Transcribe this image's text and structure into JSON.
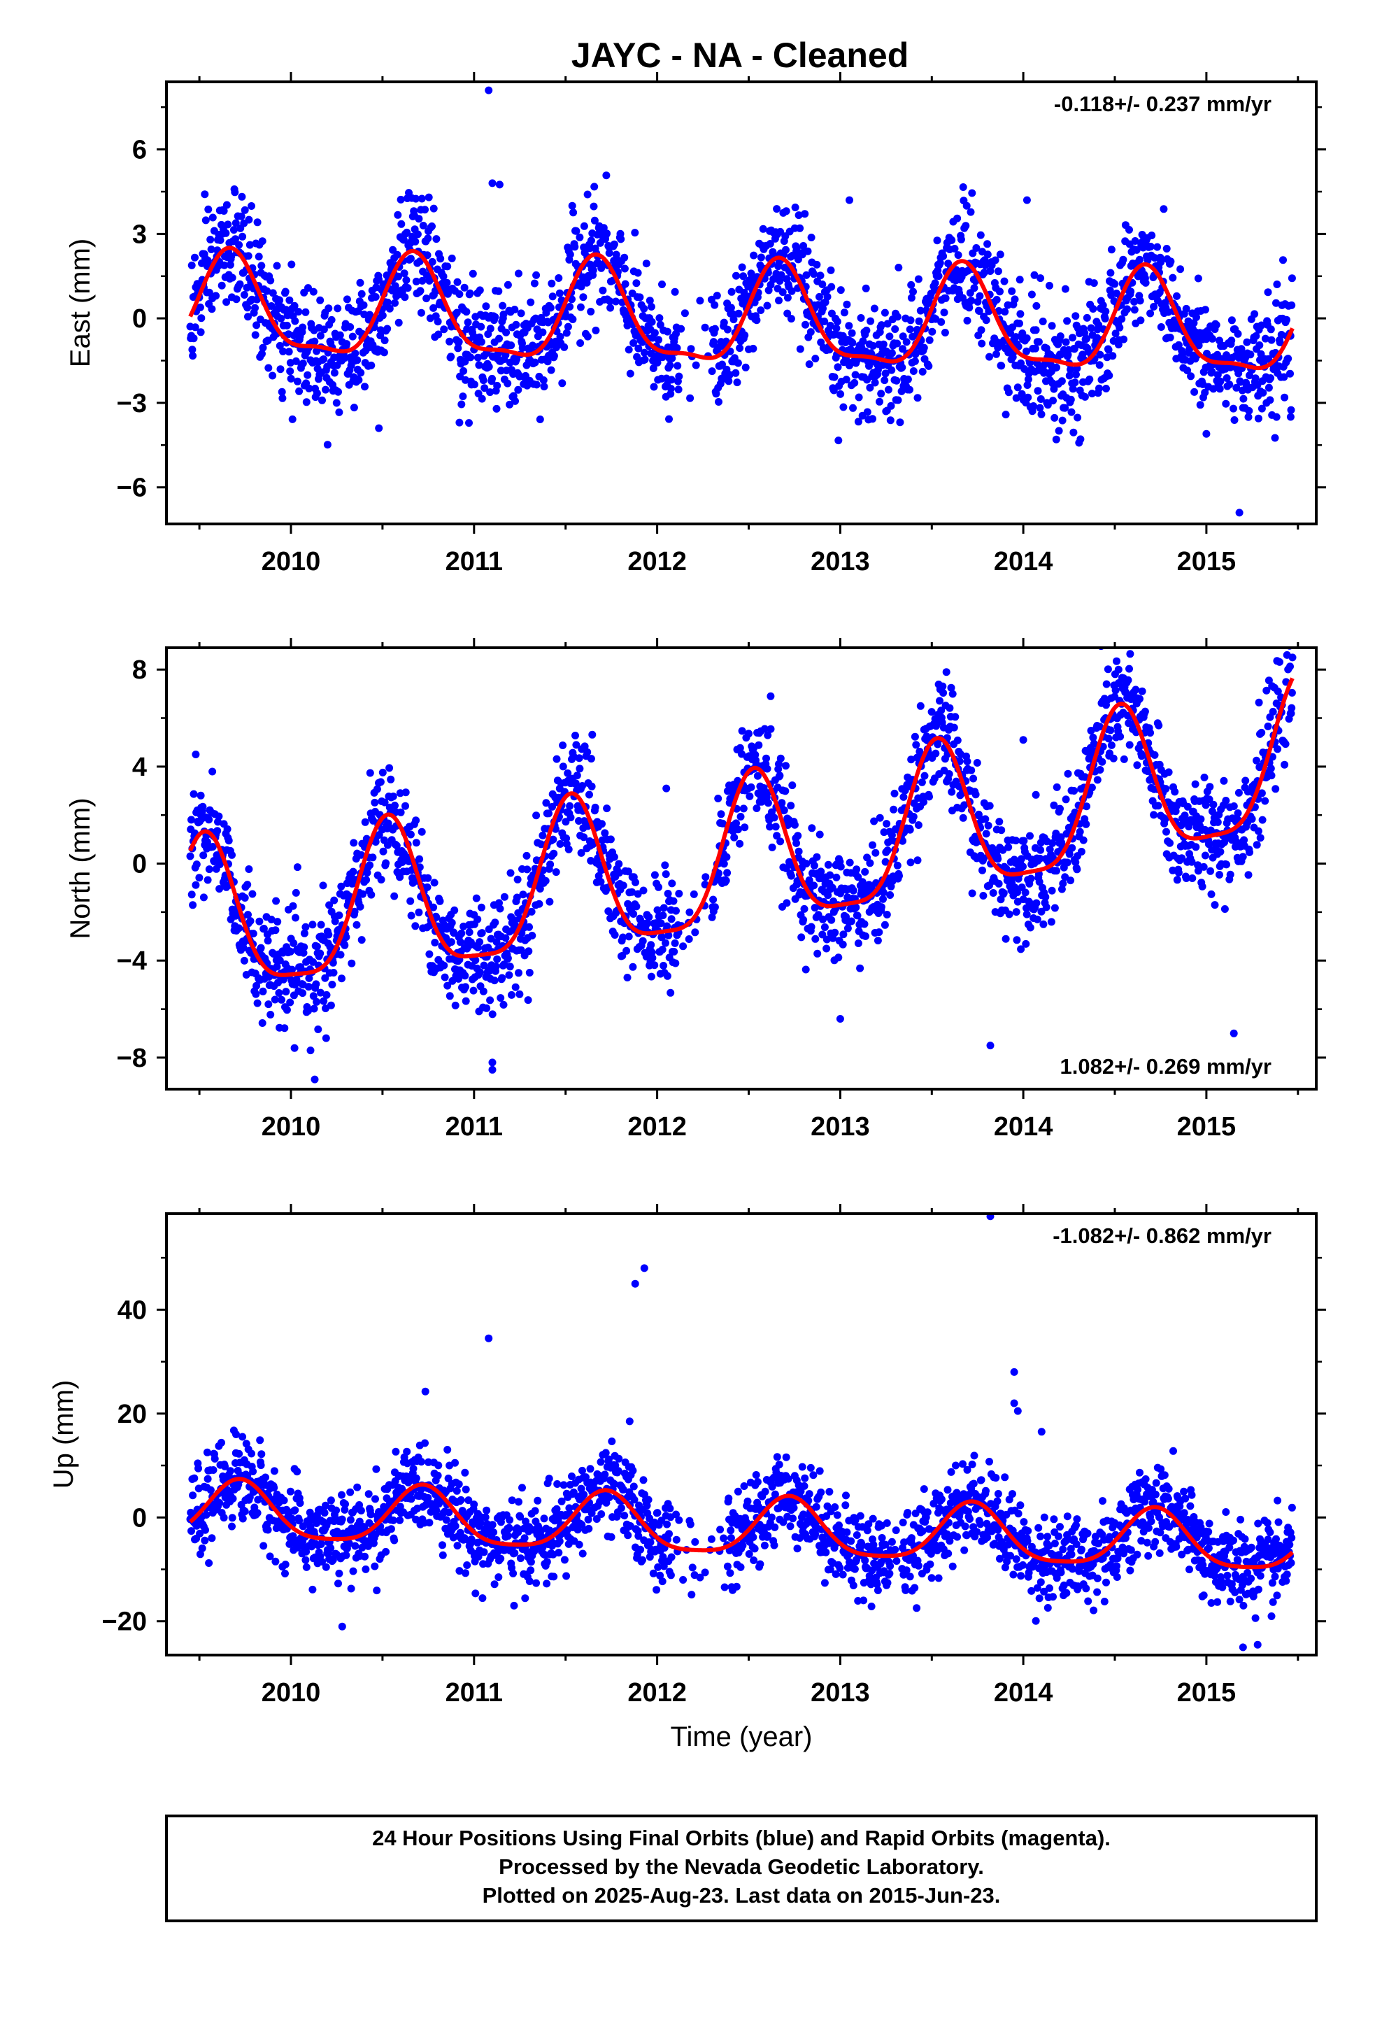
{
  "title": "JAYC  - NA - Cleaned",
  "caption": {
    "lines": [
      "24 Hour Positions Using Final Orbits (blue) and Rapid Orbits (magenta).",
      "Processed by the Nevada Geodetic Laboratory.",
      "Plotted on 2025-Aug-23. Last data on 2015-Jun-23."
    ]
  },
  "colors": {
    "points": "#0000ff",
    "fit": "#ff0000",
    "frame": "#000000"
  },
  "chart_data": [
    {
      "type": "scatter",
      "ylabel": "East (mm)",
      "xlabel": "",
      "rate_label": "-0.118+/- 0.237 mm/yr",
      "rate_position": "top-right",
      "xlim": [
        2009.32,
        2015.6
      ],
      "ylim": [
        -7.3,
        8.4
      ],
      "xticks": [
        2010,
        2011,
        2012,
        2013,
        2014,
        2015
      ],
      "xtick_labels": [
        "2010",
        "2011",
        "2012",
        "2013",
        "2014",
        "2015"
      ],
      "yticks": [
        -6,
        -3,
        0,
        3,
        6
      ],
      "ytick_labels": [
        "−6",
        "−3",
        "0",
        "3",
        "6"
      ],
      "data_range": [
        2009.45,
        2015.47
      ],
      "series": [
        {
          "kind": "points",
          "trend": [
            -0.5,
            -0.118,
            0.0,
            0.0
          ],
          "annual": [
            1.0,
            0.65
          ],
          "semiannual": [
            0.8,
            0.1
          ],
          "noise": 1.05,
          "outliers": [
            [
              2011.08,
              8.1
            ],
            [
              2011.1,
              4.8
            ],
            [
              2011.14,
              4.75
            ],
            [
              2010.78,
              3.9
            ],
            [
              2011.62,
              4.4
            ],
            [
              2013.05,
              4.2
            ],
            [
              2014.02,
              4.2
            ],
            [
              2013.72,
              4.45
            ],
            [
              2015.18,
              -6.9
            ],
            [
              2014.18,
              -4.3
            ],
            [
              2015.0,
              -4.1
            ],
            [
              2010.48,
              -3.9
            ],
            [
              2010.92,
              -3.7
            ],
            [
              2015.46,
              -3.5
            ]
          ]
        },
        {
          "kind": "fit"
        }
      ]
    },
    {
      "type": "scatter",
      "ylabel": "North (mm)",
      "xlabel": "",
      "rate_label": "1.082+/- 0.269 mm/yr",
      "rate_position": "bottom-right",
      "xlim": [
        2009.32,
        2015.6
      ],
      "ylim": [
        -9.3,
        8.9
      ],
      "xticks": [
        2010,
        2011,
        2012,
        2013,
        2014,
        2015
      ],
      "xtick_labels": [
        "2010",
        "2011",
        "2012",
        "2013",
        "2014",
        "2015"
      ],
      "yticks": [
        -8,
        -4,
        0,
        4,
        8
      ],
      "ytick_labels": [
        "−8",
        "−4",
        "0",
        "4",
        "8"
      ],
      "data_range": [
        2009.45,
        2015.47
      ],
      "series": [
        {
          "kind": "points",
          "trend": [
            -2.0,
            1.082,
            0.6,
            2012.45
          ],
          "annual": [
            3.1,
            0.08
          ],
          "semiannual": [
            0.5,
            0.3
          ],
          "noise": 1.15,
          "outliers": [
            [
              2010.13,
              -8.9
            ],
            [
              2011.1,
              -8.5
            ],
            [
              2011.1,
              -8.2
            ],
            [
              2009.48,
              4.5
            ],
            [
              2012.62,
              6.9
            ],
            [
              2013.58,
              7.9
            ],
            [
              2013.82,
              -7.5
            ],
            [
              2015.15,
              -7.0
            ],
            [
              2015.47,
              8.5
            ],
            [
              2014.52,
              8.0
            ],
            [
              2012.05,
              3.1
            ],
            [
              2013.0,
              -6.4
            ],
            [
              2014.0,
              5.1
            ]
          ]
        },
        {
          "kind": "fit"
        }
      ]
    },
    {
      "type": "scatter",
      "ylabel": "Up (mm)",
      "xlabel": "Time (year)",
      "rate_label": "-1.082+/- 0.862 mm/yr",
      "rate_position": "top-right",
      "xlim": [
        2009.32,
        2015.6
      ],
      "ylim": [
        -26.5,
        58.5
      ],
      "xticks": [
        2010,
        2011,
        2012,
        2013,
        2014,
        2015
      ],
      "xtick_labels": [
        "2010",
        "2011",
        "2012",
        "2013",
        "2014",
        "2015"
      ],
      "yticks": [
        -20,
        0,
        20,
        40
      ],
      "ytick_labels": [
        "−20",
        "0",
        "20",
        "40"
      ],
      "data_range": [
        2009.45,
        2015.47
      ],
      "series": [
        {
          "kind": "points",
          "trend": [
            2.0,
            -1.082,
            -1.8,
            2012.45
          ],
          "annual": [
            5.5,
            0.62
          ],
          "semiannual": [
            0.8,
            0.2
          ],
          "noise": 4.2,
          "outliers": [
            [
              2013.82,
              58.0
            ],
            [
              2011.93,
              48.0
            ],
            [
              2011.88,
              45.0
            ],
            [
              2011.08,
              34.5
            ],
            [
              2013.95,
              28.0
            ],
            [
              2013.95,
              22.0
            ],
            [
              2013.97,
              20.5
            ],
            [
              2011.85,
              18.5
            ],
            [
              2010.28,
              -21.0
            ],
            [
              2015.2,
              -25.0
            ],
            [
              2015.28,
              -24.5
            ],
            [
              2014.1,
              16.5
            ],
            [
              2009.7,
              16.0
            ]
          ]
        },
        {
          "kind": "fit"
        }
      ]
    }
  ]
}
